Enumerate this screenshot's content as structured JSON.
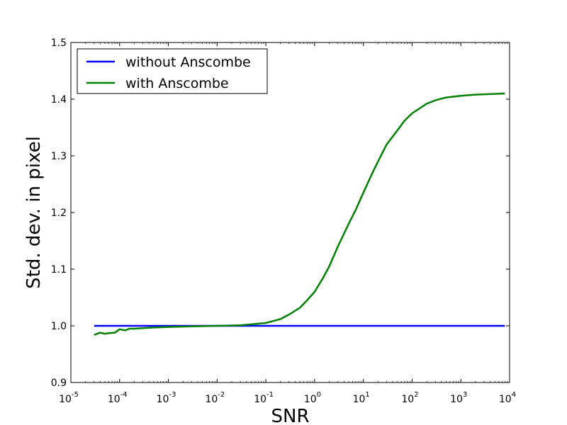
{
  "chart_data": {
    "type": "line",
    "xlabel": "SNR",
    "ylabel": "Std. dev. in pixel",
    "xscale": "log",
    "xlim": [
      1e-05,
      10000
    ],
    "ylim": [
      0.9,
      1.5
    ],
    "grid": false,
    "legend_position": "top-left",
    "x_ticks": [
      {
        "base": "10",
        "exp": "-5",
        "value": 1e-05
      },
      {
        "base": "10",
        "exp": "-4",
        "value": 0.0001
      },
      {
        "base": "10",
        "exp": "-3",
        "value": 0.001
      },
      {
        "base": "10",
        "exp": "-2",
        "value": 0.01
      },
      {
        "base": "10",
        "exp": "-1",
        "value": 0.1
      },
      {
        "base": "10",
        "exp": "0",
        "value": 1
      },
      {
        "base": "10",
        "exp": "1",
        "value": 10
      },
      {
        "base": "10",
        "exp": "2",
        "value": 100
      },
      {
        "base": "10",
        "exp": "3",
        "value": 1000
      },
      {
        "base": "10",
        "exp": "4",
        "value": 10000
      }
    ],
    "y_ticks": [
      {
        "label": "0.9",
        "value": 0.9
      },
      {
        "label": "1.0",
        "value": 1.0
      },
      {
        "label": "1.1",
        "value": 1.1
      },
      {
        "label": "1.2",
        "value": 1.2
      },
      {
        "label": "1.3",
        "value": 1.3
      },
      {
        "label": "1.4",
        "value": 1.4
      },
      {
        "label": "1.5",
        "value": 1.5
      }
    ],
    "series": [
      {
        "name": "without Anscombe",
        "color": "#0000ff",
        "points": [
          [
            3e-05,
            1.0
          ],
          [
            8000,
            1.0
          ]
        ]
      },
      {
        "name": "with Anscombe",
        "color": "#008000",
        "points": [
          [
            3e-05,
            0.984
          ],
          [
            4e-05,
            0.988
          ],
          [
            5e-05,
            0.986
          ],
          [
            6e-05,
            0.987
          ],
          [
            8e-05,
            0.988
          ],
          [
            0.0001,
            0.994
          ],
          [
            0.00013,
            0.992
          ],
          [
            0.00016,
            0.995
          ],
          [
            0.0002,
            0.995
          ],
          [
            0.0003,
            0.996
          ],
          [
            0.0005,
            0.997
          ],
          [
            0.001,
            0.998
          ],
          [
            0.003,
            0.999
          ],
          [
            0.01,
            1.0
          ],
          [
            0.03,
            1.001
          ],
          [
            0.1,
            1.005
          ],
          [
            0.2,
            1.012
          ],
          [
            0.3,
            1.02
          ],
          [
            0.5,
            1.032
          ],
          [
            0.7,
            1.045
          ],
          [
            1,
            1.06
          ],
          [
            1.5,
            1.085
          ],
          [
            2,
            1.105
          ],
          [
            3,
            1.14
          ],
          [
            5,
            1.18
          ],
          [
            7,
            1.205
          ],
          [
            10,
            1.235
          ],
          [
            15,
            1.268
          ],
          [
            20,
            1.29
          ],
          [
            30,
            1.32
          ],
          [
            50,
            1.345
          ],
          [
            70,
            1.362
          ],
          [
            100,
            1.375
          ],
          [
            150,
            1.385
          ],
          [
            200,
            1.392
          ],
          [
            300,
            1.398
          ],
          [
            500,
            1.403
          ],
          [
            1000,
            1.406
          ],
          [
            2000,
            1.408
          ],
          [
            4000,
            1.409
          ],
          [
            8000,
            1.41
          ]
        ]
      }
    ]
  }
}
